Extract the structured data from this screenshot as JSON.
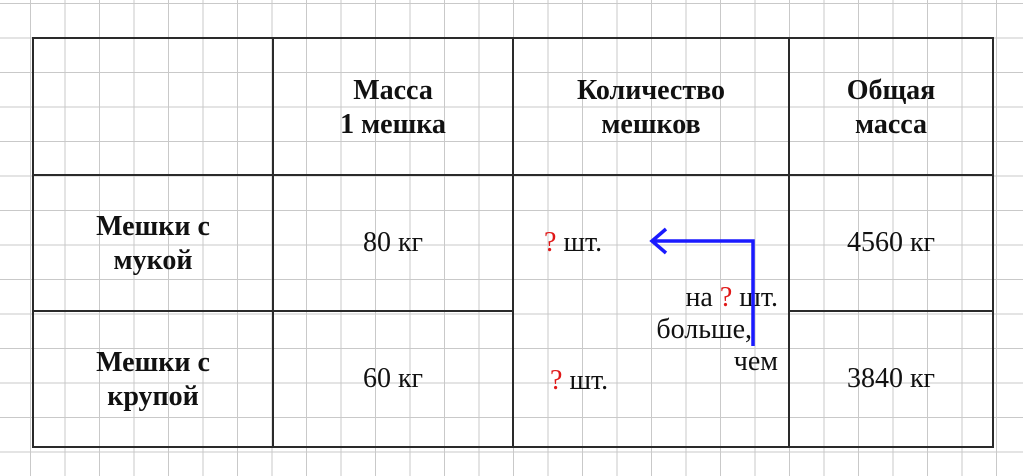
{
  "headers": {
    "mass_one": [
      "Масса",
      "1 мешка"
    ],
    "count": [
      "Количество",
      "мешков"
    ],
    "total": [
      "Общая",
      "масса"
    ]
  },
  "rows": [
    {
      "label": [
        "Мешки с",
        "мукой"
      ],
      "mass_one": "80 кг",
      "count_q": "?",
      "count_unit": "шт.",
      "total": "4560 кг"
    },
    {
      "label": [
        "Мешки с",
        "крупой"
      ],
      "mass_one": "60 кг",
      "count_q": "?",
      "count_unit": "шт.",
      "total": "3840 кг"
    }
  ],
  "annotation": {
    "line1_pre": "на",
    "line1_q": "?",
    "line1_post": "шт.",
    "line2": "больше,",
    "line3": "чем"
  },
  "colors": {
    "question": "#e01818",
    "arrow": "#1a1aff"
  }
}
